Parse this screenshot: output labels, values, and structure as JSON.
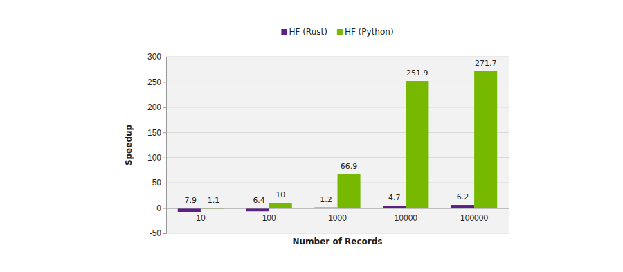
{
  "chart_data": {
    "type": "bar",
    "categories": [
      "10",
      "100",
      "1000",
      "10000",
      "100000"
    ],
    "series": [
      {
        "name": "HF (Rust)",
        "color": "#5b1f87",
        "values": [
          -7.9,
          -6.4,
          1.2,
          4.7,
          6.2
        ]
      },
      {
        "name": "HF (Python)",
        "color": "#76b900",
        "values": [
          -1.1,
          10,
          66.9,
          251.9,
          271.7
        ]
      }
    ],
    "x_label": "Number of Records",
    "y_label": "Speedup",
    "ylim": [
      -50,
      300
    ],
    "yticks": [
      -50,
      0,
      50,
      100,
      150,
      200,
      250,
      300
    ],
    "grid": true,
    "legend": "top",
    "data_labels": true
  }
}
